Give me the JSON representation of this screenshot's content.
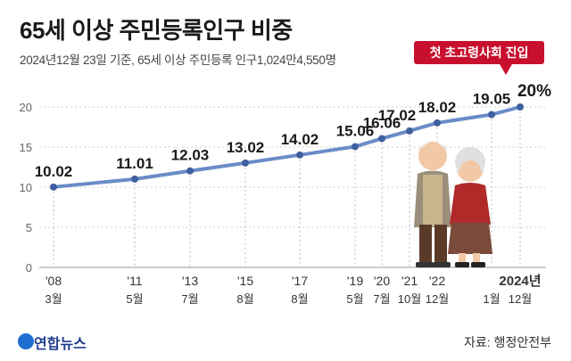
{
  "title": "65세 이상 주민등록인구 비중",
  "subtitle": "2024년12월 23일 기준, 65세 이상 주민등록 인구1,024만4,550명",
  "badge": "첫 초고령사회 진입",
  "source": "자료: 행정안전부",
  "logo": "연합뉴스",
  "colors": {
    "line": "#6a8cc7",
    "accent": "#c8102e",
    "grid": "#cccccc",
    "logo": "#1f3e8c"
  },
  "chart_data": {
    "type": "line",
    "title": "65세 이상 주민등록인구 비중",
    "xlabel": "",
    "ylabel": "",
    "ylim": [
      0,
      20
    ],
    "yticks": [
      0,
      5,
      10,
      15,
      20
    ],
    "grid": true,
    "x": [
      "'08 3월",
      "'11 5월",
      "'13 7월",
      "'15 8월",
      "'17 8월",
      "'19 5월",
      "'20 7월",
      "'21 10월",
      "'22 12월",
      "2024년 1월",
      "2024년 12월"
    ],
    "x_labels": [
      {
        "top": "'08",
        "bottom": "3월"
      },
      {
        "top": "'11",
        "bottom": "5월"
      },
      {
        "top": "'13",
        "bottom": "7월"
      },
      {
        "top": "'15",
        "bottom": "8월"
      },
      {
        "top": "'17",
        "bottom": "8월"
      },
      {
        "top": "'19",
        "bottom": "5월"
      },
      {
        "top": "'20",
        "bottom": "7월"
      },
      {
        "top": "'21",
        "bottom": "10월"
      },
      {
        "top": "'22",
        "bottom": "12월"
      },
      {
        "top": "",
        "bottom": "1월"
      },
      {
        "top": "2024년",
        "bottom": "12월"
      }
    ],
    "values": [
      10.02,
      11.01,
      12.03,
      13.02,
      14.02,
      15.06,
      16.06,
      17.02,
      18.02,
      19.05,
      20
    ],
    "data_labels": [
      "10.02",
      "11.01",
      "12.03",
      "13.02",
      "14.02",
      "15.06",
      "16.06",
      "17.02",
      "18.02",
      "19.05",
      "20%"
    ]
  }
}
